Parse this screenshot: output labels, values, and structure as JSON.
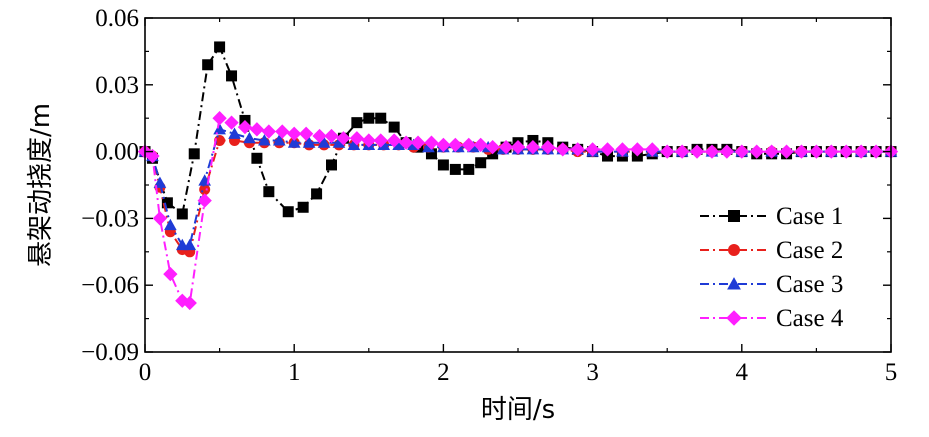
{
  "chart_data": {
    "type": "line",
    "title": "",
    "xlabel": "时间/s",
    "ylabel": "悬架动挠度/m",
    "xlim": [
      0,
      5
    ],
    "ylim": [
      -0.09,
      0.06
    ],
    "xticks": [
      0,
      1,
      2,
      3,
      4,
      5
    ],
    "xtick_labels": [
      "0",
      "1",
      "2",
      "3",
      "4",
      "5"
    ],
    "yticks": [
      0.06,
      0.03,
      0.0,
      -0.03,
      -0.06,
      -0.09
    ],
    "ytick_labels": [
      "0.06",
      "0.03",
      "0.00",
      "−0.03",
      "−0.06",
      "−0.09"
    ],
    "grid": false,
    "legend_position": "bottom-right",
    "series": [
      {
        "name": "Case 1",
        "color": "#000000",
        "marker": "square",
        "x": [
          0.0,
          0.05,
          0.15,
          0.25,
          0.33,
          0.42,
          0.5,
          0.58,
          0.67,
          0.75,
          0.83,
          0.96,
          1.06,
          1.15,
          1.25,
          1.33,
          1.42,
          1.5,
          1.58,
          1.67,
          1.75,
          1.83,
          1.92,
          2.0,
          2.08,
          2.17,
          2.25,
          2.33,
          2.42,
          2.5,
          2.6,
          2.7,
          2.8,
          2.9,
          3.0,
          3.1,
          3.2,
          3.3,
          3.4,
          3.5,
          3.6,
          3.7,
          3.8,
          3.9,
          4.0,
          4.1,
          4.2,
          4.3,
          4.4,
          4.5,
          4.6,
          4.7,
          4.8,
          4.9,
          5.0
        ],
        "y": [
          0.0,
          -0.003,
          -0.023,
          -0.028,
          -0.001,
          0.039,
          0.047,
          0.034,
          0.014,
          -0.003,
          -0.018,
          -0.027,
          -0.025,
          -0.019,
          -0.006,
          0.006,
          0.013,
          0.015,
          0.015,
          0.011,
          0.004,
          0.002,
          -0.001,
          -0.006,
          -0.008,
          -0.008,
          -0.005,
          -0.001,
          0.002,
          0.004,
          0.005,
          0.004,
          0.002,
          0.001,
          0.0,
          -0.002,
          -0.002,
          -0.002,
          -0.001,
          0.0,
          0.0,
          0.001,
          0.001,
          0.001,
          0.0,
          -0.001,
          -0.001,
          -0.001,
          0.0,
          0.0,
          0.0,
          0.0,
          0.0,
          0.0,
          0.0
        ]
      },
      {
        "name": "Case 2",
        "color": "#e8201c",
        "marker": "circle",
        "x": [
          0.0,
          0.05,
          0.1,
          0.17,
          0.25,
          0.3,
          0.4,
          0.5,
          0.6,
          0.7,
          0.8,
          0.9,
          1.0,
          1.1,
          1.2,
          1.3,
          1.4,
          1.5,
          1.6,
          1.7,
          1.8,
          1.9,
          2.0,
          2.1,
          2.2,
          2.3,
          2.4,
          2.5,
          2.6,
          2.7,
          2.8,
          2.9,
          3.0,
          3.2,
          3.4,
          3.6,
          3.8,
          4.0,
          4.2,
          4.4,
          4.6,
          4.8,
          5.0
        ],
        "y": [
          0.0,
          -0.002,
          -0.016,
          -0.036,
          -0.044,
          -0.045,
          -0.017,
          0.005,
          0.005,
          0.004,
          0.004,
          0.004,
          0.004,
          0.003,
          0.003,
          0.003,
          0.003,
          0.003,
          0.003,
          0.003,
          0.002,
          0.002,
          0.002,
          0.002,
          0.002,
          0.001,
          0.001,
          0.001,
          0.001,
          0.001,
          0.001,
          0.0,
          0.0,
          0.0,
          0.0,
          0.0,
          0.0,
          0.0,
          0.0,
          0.0,
          0.0,
          0.0,
          0.0
        ]
      },
      {
        "name": "Case 3",
        "color": "#1f3bd6",
        "marker": "triangle",
        "x": [
          0.0,
          0.05,
          0.1,
          0.17,
          0.25,
          0.3,
          0.4,
          0.5,
          0.6,
          0.7,
          0.8,
          0.9,
          1.0,
          1.1,
          1.2,
          1.3,
          1.4,
          1.5,
          1.6,
          1.7,
          1.8,
          1.9,
          2.0,
          2.1,
          2.2,
          2.3,
          2.4,
          2.5,
          2.6,
          2.7,
          2.8,
          2.9,
          3.0,
          3.2,
          3.4,
          3.6,
          3.8,
          4.0,
          4.2,
          4.4,
          4.6,
          4.8,
          5.0
        ],
        "y": [
          0.0,
          -0.002,
          -0.014,
          -0.033,
          -0.042,
          -0.042,
          -0.013,
          0.01,
          0.008,
          0.006,
          0.005,
          0.005,
          0.004,
          0.004,
          0.004,
          0.004,
          0.003,
          0.003,
          0.003,
          0.003,
          0.003,
          0.002,
          0.002,
          0.002,
          0.002,
          0.002,
          0.001,
          0.001,
          0.001,
          0.001,
          0.001,
          0.001,
          0.0,
          0.0,
          0.0,
          0.0,
          0.0,
          0.0,
          0.0,
          0.0,
          0.0,
          0.0,
          0.0
        ]
      },
      {
        "name": "Case 4",
        "color": "#ff1fff",
        "marker": "diamond",
        "x": [
          0.0,
          0.05,
          0.1,
          0.17,
          0.25,
          0.3,
          0.4,
          0.5,
          0.58,
          0.67,
          0.75,
          0.83,
          0.92,
          1.0,
          1.08,
          1.17,
          1.25,
          1.33,
          1.42,
          1.5,
          1.58,
          1.67,
          1.75,
          1.83,
          1.92,
          2.0,
          2.08,
          2.17,
          2.25,
          2.33,
          2.42,
          2.5,
          2.6,
          2.7,
          2.8,
          2.9,
          3.0,
          3.1,
          3.2,
          3.3,
          3.4,
          3.5,
          3.6,
          3.7,
          3.8,
          3.9,
          4.0,
          4.1,
          4.2,
          4.3,
          4.4,
          4.5,
          4.6,
          4.7,
          4.8,
          4.9,
          5.0
        ],
        "y": [
          0.0,
          -0.002,
          -0.03,
          -0.055,
          -0.067,
          -0.068,
          -0.022,
          0.015,
          0.013,
          0.011,
          0.01,
          0.009,
          0.009,
          0.008,
          0.008,
          0.007,
          0.007,
          0.006,
          0.006,
          0.005,
          0.005,
          0.005,
          0.004,
          0.004,
          0.004,
          0.003,
          0.003,
          0.003,
          0.003,
          0.002,
          0.002,
          0.002,
          0.002,
          0.002,
          0.001,
          0.001,
          0.001,
          0.001,
          0.001,
          0.001,
          0.001,
          0.0,
          0.0,
          0.0,
          0.0,
          0.0,
          0.0,
          0.0,
          0.0,
          0.0,
          0.0,
          0.0,
          0.0,
          0.0,
          0.0,
          0.0,
          0.0
        ]
      }
    ]
  }
}
